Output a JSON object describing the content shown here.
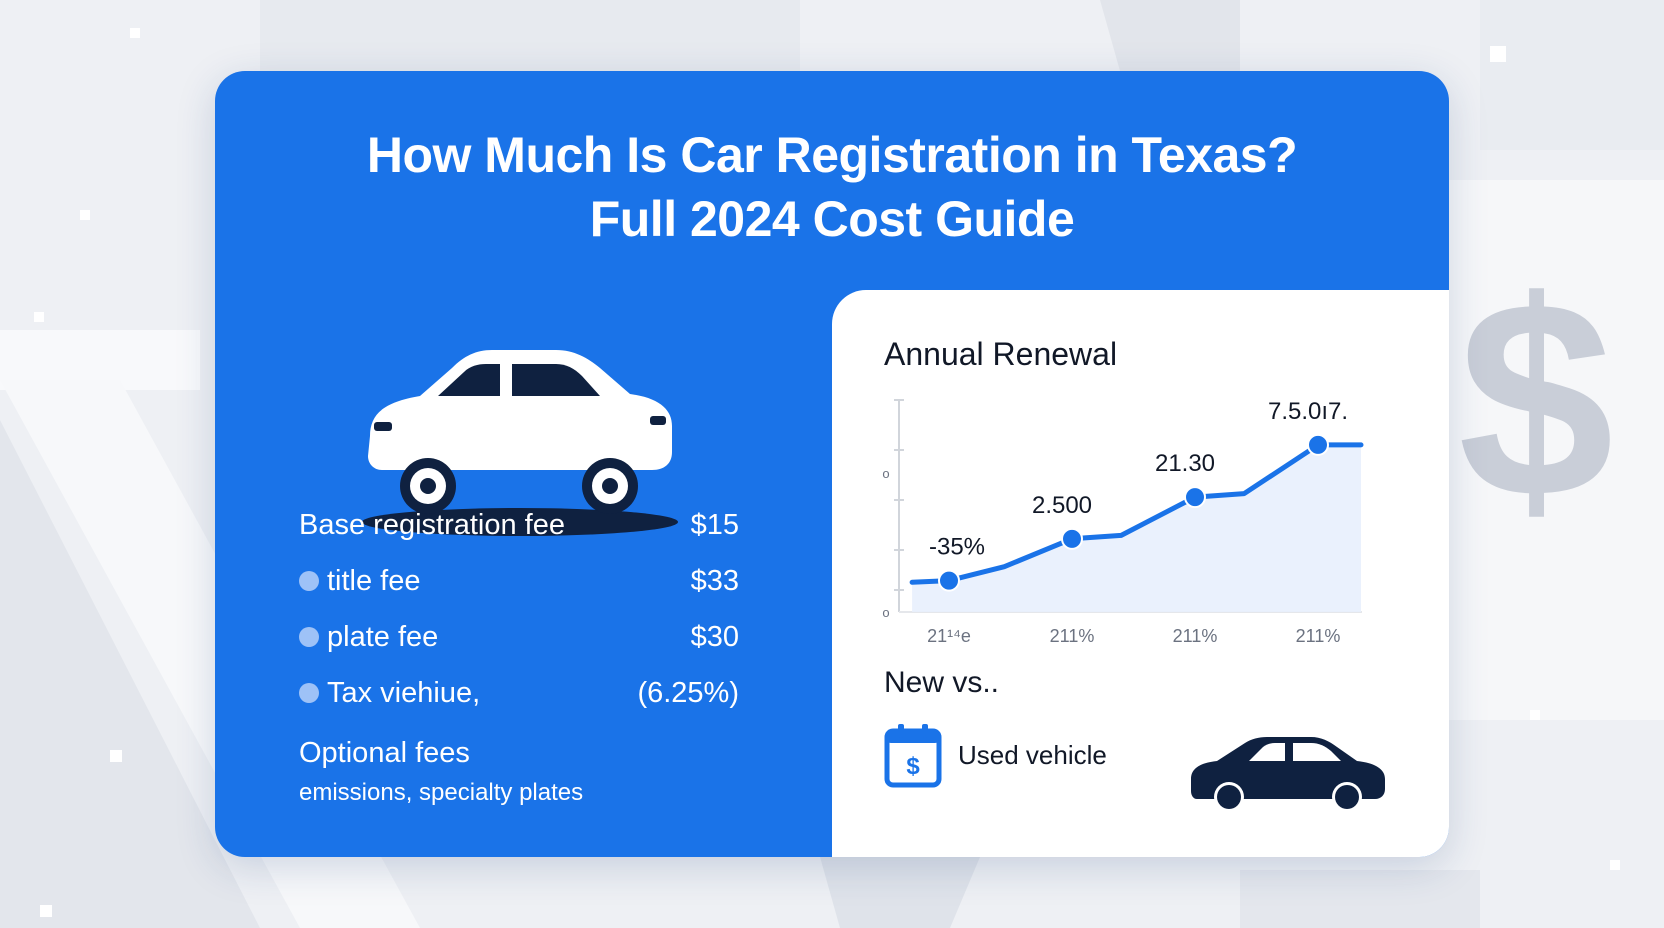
{
  "title": {
    "line1": "How Much Is Car Registration in Texas?",
    "line2": "Full 2024 Cost Guide"
  },
  "fees": [
    {
      "label": "Base registration fee",
      "value": "$15",
      "bullet": false
    },
    {
      "label": "title fee",
      "value": "$33",
      "bullet": true
    },
    {
      "label": "plate fee",
      "value": "$30",
      "bullet": true
    },
    {
      "label": "Tax viehiue,",
      "value": "(6.25%)",
      "bullet": true
    }
  ],
  "optional": {
    "title": "Optional fees",
    "desc": "emissions, specialty plates"
  },
  "renewal": {
    "title": "Annual Renewal"
  },
  "chart_data": {
    "type": "line",
    "title": "Annual Renewal",
    "x_labels": [
      "21¹⁴e",
      "211%",
      "211%",
      "211%"
    ],
    "y_ticks": [
      "o",
      "o"
    ],
    "points": [
      {
        "x": 0,
        "y": 10,
        "label": "-35%"
      },
      {
        "x": 1,
        "y": 34,
        "label": "2.500"
      },
      {
        "x": 2,
        "y": 58,
        "label": "21.30"
      },
      {
        "x": 3,
        "y": 88,
        "label": "7.5.0ı7."
      }
    ],
    "line_path": [
      [
        -0.3,
        9
      ],
      [
        0,
        10
      ],
      [
        0.45,
        18
      ],
      [
        1,
        34
      ],
      [
        1.4,
        36
      ],
      [
        2,
        58
      ],
      [
        2.4,
        60
      ],
      [
        3,
        88
      ],
      [
        3.35,
        88
      ]
    ],
    "ylim": [
      0,
      100
    ],
    "grid": false,
    "color": "#1a73e8",
    "fill": "#e8f0fd"
  },
  "comparison": {
    "title": "New vs..",
    "used_label": "Used vehicle"
  },
  "icons": {
    "car_white": "car-icon",
    "calendar": "calendar-dollar-icon",
    "car_dark": "car-icon",
    "dollar": "dollar-sign-icon",
    "dollar_glyph": "$"
  },
  "colors": {
    "brand_blue": "#1a73e8",
    "navy": "#0f2140",
    "bullet": "#9ec2f7"
  }
}
